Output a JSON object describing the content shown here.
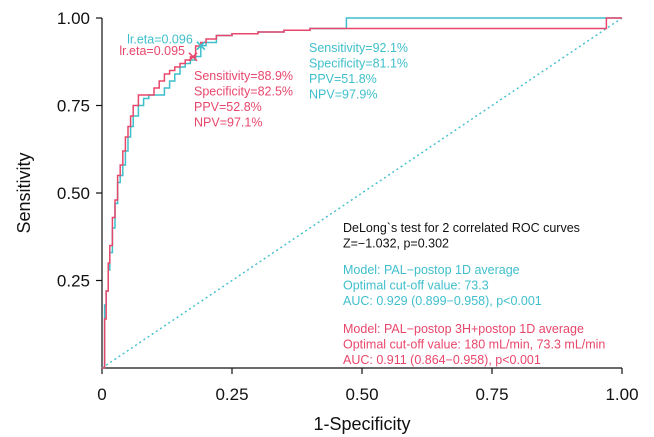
{
  "colors": {
    "teal": "#3fbfcc",
    "red": "#e8476c",
    "black": "#111111",
    "diagonal": "#3fbfcc"
  },
  "chart_data": {
    "type": "line",
    "xlabel": "1-Specificity",
    "ylabel": "Sensitivity",
    "xlim": [
      0,
      1
    ],
    "ylim": [
      0,
      1
    ],
    "xticks": [
      "0",
      "0.25",
      "0.50",
      "0.75",
      "1.00"
    ],
    "yticks": [
      "0.25",
      "0.50",
      "0.75",
      "1.00"
    ],
    "grid": false,
    "diagonal_reference": true,
    "series": [
      {
        "name": "Model: PAL−postop 1D average",
        "color": "#3fbfcc",
        "x": [
          0,
          0.005,
          0.008,
          0.012,
          0.015,
          0.02,
          0.025,
          0.03,
          0.035,
          0.04,
          0.045,
          0.05,
          0.055,
          0.06,
          0.07,
          0.08,
          0.09,
          0.1,
          0.11,
          0.12,
          0.13,
          0.14,
          0.15,
          0.16,
          0.17,
          0.18,
          0.19,
          0.2,
          0.22,
          0.25,
          0.3,
          0.35,
          0.4,
          0.42,
          0.47,
          0.6,
          0.8,
          0.97,
          1.0
        ],
        "y": [
          0,
          0.18,
          0.22,
          0.28,
          0.33,
          0.4,
          0.47,
          0.53,
          0.55,
          0.58,
          0.62,
          0.66,
          0.69,
          0.72,
          0.75,
          0.77,
          0.78,
          0.78,
          0.78,
          0.8,
          0.82,
          0.84,
          0.86,
          0.87,
          0.88,
          0.89,
          0.921,
          0.93,
          0.95,
          0.955,
          0.96,
          0.965,
          0.97,
          0.97,
          1.0,
          1.0,
          1.0,
          1.0,
          1.0
        ]
      },
      {
        "name": "Model: PAL−postop 3H+postop 1D average",
        "color": "#e8476c",
        "x": [
          0,
          0.005,
          0.008,
          0.012,
          0.015,
          0.02,
          0.025,
          0.03,
          0.035,
          0.04,
          0.045,
          0.05,
          0.055,
          0.06,
          0.07,
          0.08,
          0.09,
          0.1,
          0.11,
          0.12,
          0.13,
          0.14,
          0.15,
          0.16,
          0.17,
          0.18,
          0.19,
          0.2,
          0.22,
          0.25,
          0.3,
          0.35,
          0.4,
          0.44,
          0.5,
          0.7,
          0.97,
          0.97,
          1.0
        ],
        "y": [
          0,
          0.14,
          0.22,
          0.3,
          0.35,
          0.43,
          0.48,
          0.55,
          0.58,
          0.62,
          0.66,
          0.69,
          0.72,
          0.75,
          0.78,
          0.78,
          0.78,
          0.8,
          0.82,
          0.84,
          0.85,
          0.86,
          0.87,
          0.88,
          0.889,
          0.92,
          0.93,
          0.94,
          0.95,
          0.955,
          0.96,
          0.965,
          0.97,
          0.97,
          0.97,
          0.97,
          0.97,
          1.0,
          1.0
        ]
      }
    ],
    "markers": [
      {
        "series": 0,
        "x": 0.19,
        "y": 0.921,
        "label": "lr.eta=0.096",
        "color": "#3fbfcc"
      },
      {
        "series": 1,
        "x": 0.175,
        "y": 0.889,
        "label": "lr.eta=0.095",
        "color": "#e8476c"
      }
    ],
    "annotations": {
      "teal_stats": [
        "Sensitivity=92.1%",
        "Specificity=81.1%",
        "PPV=51.8%",
        "NPV=97.9%"
      ],
      "red_stats": [
        "Sensitivity=88.9%",
        "Specificity=82.5%",
        "PPV=52.8%",
        "NPV=97.1%"
      ],
      "delong": [
        "DeLong`s test for 2 correlated ROC curves",
        "Z=−1.032, p=0.302"
      ],
      "model1": [
        "Model: PAL−postop 1D average",
        "Optimal cut-off value: 73.3",
        "AUC: 0.929 (0.899−0.958), p<0.001"
      ],
      "model2": [
        "Model: PAL−postop 3H+postop 1D average",
        "Optimal cut-off value: 180 mL/min, 73.3 mL/min",
        "AUC: 0.911 (0.864−0.958), p<0.001"
      ]
    }
  }
}
